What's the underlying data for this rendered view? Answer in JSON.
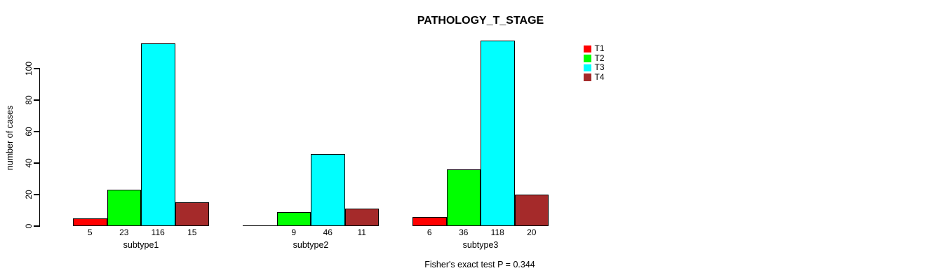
{
  "chart_data": {
    "type": "bar",
    "title": "PATHOLOGY_T_STAGE",
    "ylabel": "number of cases",
    "xlabel": "",
    "categories": [
      "subtype1",
      "subtype2",
      "subtype3"
    ],
    "series": [
      {
        "name": "T1",
        "color": "#FF0000",
        "values": [
          5,
          0,
          6
        ]
      },
      {
        "name": "T2",
        "color": "#00FF00",
        "values": [
          23,
          9,
          36
        ]
      },
      {
        "name": "T3",
        "color": "#00FFFF",
        "values": [
          116,
          46,
          118
        ]
      },
      {
        "name": "T4",
        "color": "#A52A2A",
        "values": [
          15,
          11,
          20
        ]
      }
    ],
    "bar_value_labels": [
      [
        "5",
        "23",
        "116",
        "15"
      ],
      [
        "",
        "9",
        "46",
        "11"
      ],
      [
        "6",
        "36",
        "118",
        "20"
      ]
    ],
    "yticks": [
      0,
      20,
      40,
      60,
      80,
      100
    ],
    "ylim": [
      0,
      120
    ],
    "grid": false,
    "legend_position": "right",
    "legend_entries": [
      "T1",
      "T2",
      "T3",
      "T4"
    ],
    "annotation": "Fisher's exact test P = 0.344",
    "background_color": "#FFFFFF",
    "bar_border_color": "#000000"
  }
}
